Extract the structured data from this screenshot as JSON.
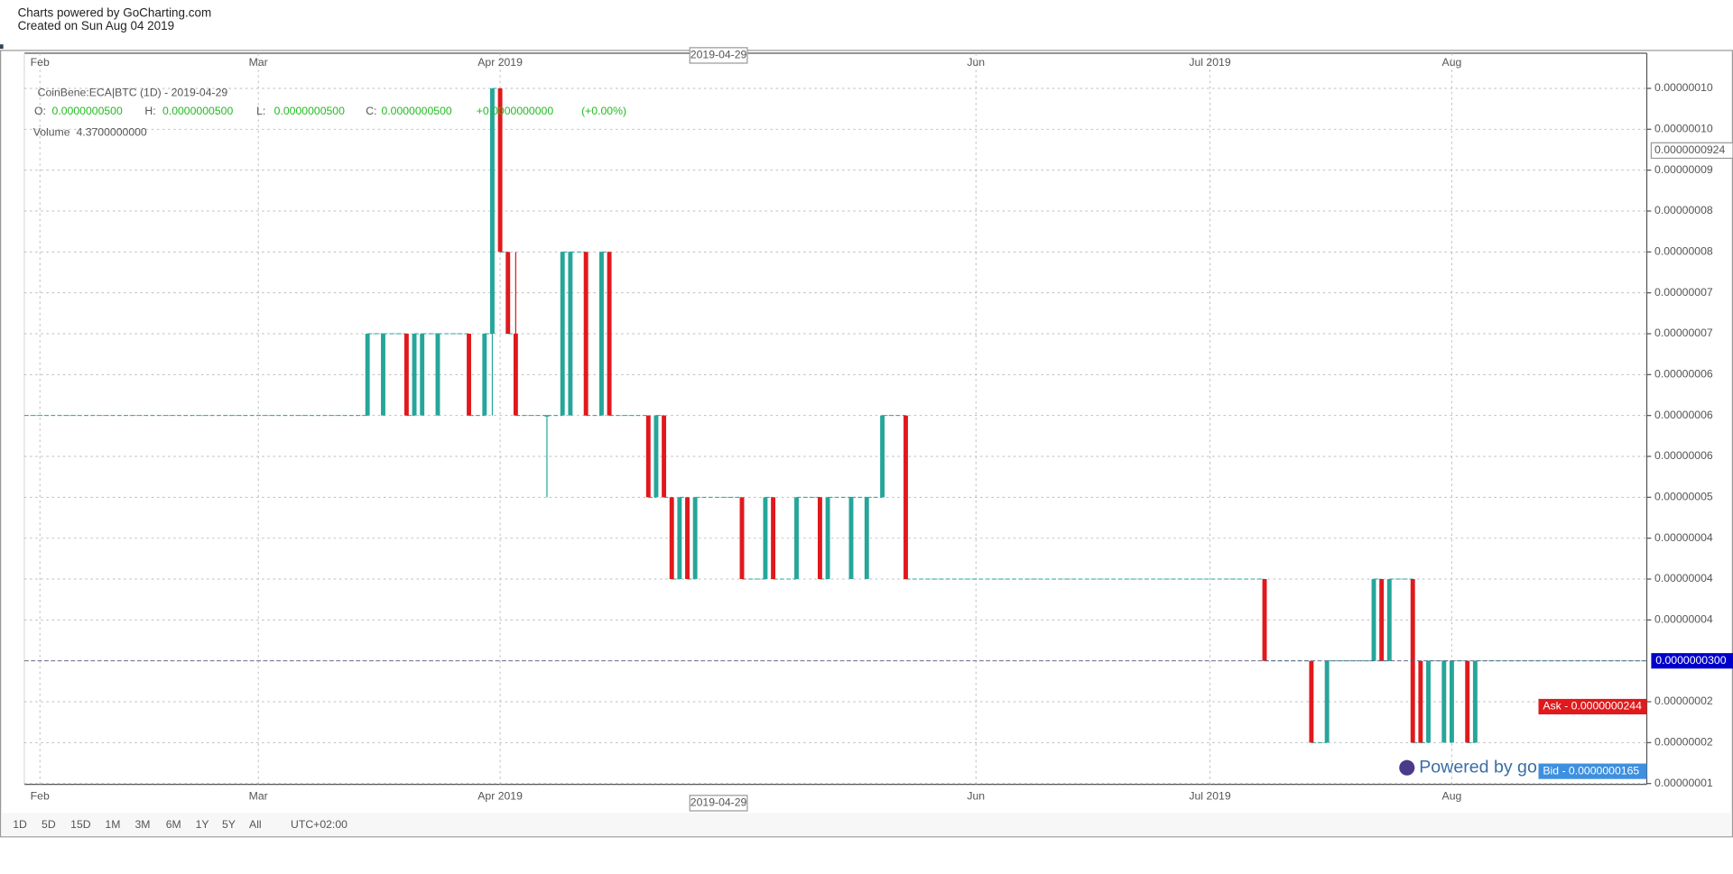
{
  "header": {
    "line1": "Charts powered by GoCharting.com",
    "line2": "Created on Sun Aug 04 2019"
  },
  "chart_data": {
    "type": "candlestick",
    "legend": {
      "symbol": "CoinBene:ECA|BTC (1D) - 2019-04-29",
      "o_label": "O:",
      "o_value": "0.0000000500",
      "h_label": "H:",
      "h_value": "0.0000000500",
      "l_label": "L:",
      "l_value": "0.0000000500",
      "c_label": "C:",
      "c_value": "0.0000000500",
      "change": "+0.0000000000",
      "change_pct": "(+0.00%)",
      "volume_label": "Volume",
      "volume_value": "4.3700000000"
    },
    "up_color": "#26a69a",
    "down_color": "#e0191c",
    "xlim": [
      "2019-01-30",
      "2019-08-26"
    ],
    "xticks": [
      {
        "value": "2019-02-01",
        "label": "Feb"
      },
      {
        "value": "2019-03-01",
        "label": "Mar"
      },
      {
        "value": "2019-04-01",
        "label": "Apr 2019"
      },
      {
        "value": "2019-06-01",
        "label": "Jun"
      },
      {
        "value": "2019-07-01",
        "label": "Jul 2019"
      },
      {
        "value": "2019-08-01",
        "label": "Aug"
      }
    ],
    "ylim": [
      1.49e-08,
      1.043e-07
    ],
    "yticks": [
      {
        "value": 1e-07,
        "label": "0.00000010"
      },
      {
        "value": 9.5e-08,
        "label": "0.00000010"
      },
      {
        "value": 9e-08,
        "label": "0.00000009"
      },
      {
        "value": 8.5e-08,
        "label": "0.00000008"
      },
      {
        "value": 8e-08,
        "label": "0.00000008"
      },
      {
        "value": 7.5e-08,
        "label": "0.00000007"
      },
      {
        "value": 7e-08,
        "label": "0.00000007"
      },
      {
        "value": 6.5e-08,
        "label": "0.00000006"
      },
      {
        "value": 6e-08,
        "label": "0.00000006"
      },
      {
        "value": 5.5e-08,
        "label": "0.00000006"
      },
      {
        "value": 5e-08,
        "label": "0.00000005"
      },
      {
        "value": 4.5e-08,
        "label": "0.00000004"
      },
      {
        "value": 4e-08,
        "label": "0.00000004"
      },
      {
        "value": 3.5e-08,
        "label": "0.00000004"
      },
      {
        "value": 2.5e-08,
        "label": "0.00000002"
      },
      {
        "value": 2e-08,
        "label": "0.00000002"
      },
      {
        "value": 1.5e-08,
        "label": "0.00000001"
      }
    ],
    "grid": true,
    "candles": [
      {
        "date": "2019-03-15",
        "open": 6e-08,
        "high": 7e-08,
        "low": 6e-08,
        "close": 7e-08
      },
      {
        "date": "2019-03-17",
        "open": 6e-08,
        "high": 7e-08,
        "low": 6e-08,
        "close": 7e-08
      },
      {
        "date": "2019-03-20",
        "open": 7e-08,
        "high": 7e-08,
        "low": 6e-08,
        "close": 6e-08
      },
      {
        "date": "2019-03-21",
        "open": 6e-08,
        "high": 7e-08,
        "low": 6e-08,
        "close": 7e-08
      },
      {
        "date": "2019-03-22",
        "open": 6e-08,
        "high": 7e-08,
        "low": 6e-08,
        "close": 7e-08
      },
      {
        "date": "2019-03-24",
        "open": 6e-08,
        "high": 7e-08,
        "low": 6e-08,
        "close": 7e-08
      },
      {
        "date": "2019-03-28",
        "open": 7e-08,
        "high": 7e-08,
        "low": 6e-08,
        "close": 6e-08
      },
      {
        "date": "2019-03-30",
        "open": 6e-08,
        "high": 7e-08,
        "low": 6e-08,
        "close": 7e-08
      },
      {
        "date": "2019-03-31",
        "open": 7e-08,
        "high": 1e-07,
        "low": 6e-08,
        "close": 1e-07
      },
      {
        "date": "2019-04-01",
        "open": 1e-07,
        "high": 1e-07,
        "low": 8e-08,
        "close": 8e-08
      },
      {
        "date": "2019-04-02",
        "open": 8e-08,
        "high": 8e-08,
        "low": 7e-08,
        "close": 7e-08
      },
      {
        "date": "2019-04-03",
        "open": 7e-08,
        "high": 8e-08,
        "low": 6e-08,
        "close": 6e-08
      },
      {
        "date": "2019-04-07",
        "open": 6e-08,
        "high": 6e-08,
        "low": 5e-08,
        "close": 6e-08
      },
      {
        "date": "2019-04-09",
        "open": 6e-08,
        "high": 8e-08,
        "low": 6e-08,
        "close": 8e-08
      },
      {
        "date": "2019-04-10",
        "open": 6e-08,
        "high": 8e-08,
        "low": 6e-08,
        "close": 8e-08
      },
      {
        "date": "2019-04-12",
        "open": 8e-08,
        "high": 8e-08,
        "low": 6e-08,
        "close": 6e-08
      },
      {
        "date": "2019-04-14",
        "open": 6e-08,
        "high": 8e-08,
        "low": 6e-08,
        "close": 8e-08
      },
      {
        "date": "2019-04-15",
        "open": 8e-08,
        "high": 8e-08,
        "low": 6e-08,
        "close": 6e-08
      },
      {
        "date": "2019-04-20",
        "open": 6e-08,
        "high": 6e-08,
        "low": 5e-08,
        "close": 5e-08
      },
      {
        "date": "2019-04-21",
        "open": 5e-08,
        "high": 6e-08,
        "low": 5e-08,
        "close": 6e-08
      },
      {
        "date": "2019-04-22",
        "open": 6e-08,
        "high": 6e-08,
        "low": 5e-08,
        "close": 5e-08
      },
      {
        "date": "2019-04-23",
        "open": 5e-08,
        "high": 5e-08,
        "low": 4e-08,
        "close": 4e-08
      },
      {
        "date": "2019-04-24",
        "open": 4e-08,
        "high": 5e-08,
        "low": 4e-08,
        "close": 5e-08
      },
      {
        "date": "2019-04-25",
        "open": 5e-08,
        "high": 5e-08,
        "low": 4e-08,
        "close": 4e-08
      },
      {
        "date": "2019-04-26",
        "open": 4e-08,
        "high": 5e-08,
        "low": 4e-08,
        "close": 5e-08
      },
      {
        "date": "2019-05-02",
        "open": 5e-08,
        "high": 5e-08,
        "low": 4e-08,
        "close": 4e-08
      },
      {
        "date": "2019-05-05",
        "open": 4e-08,
        "high": 5e-08,
        "low": 4e-08,
        "close": 5e-08
      },
      {
        "date": "2019-05-06",
        "open": 5e-08,
        "high": 5e-08,
        "low": 4e-08,
        "close": 4e-08
      },
      {
        "date": "2019-05-09",
        "open": 4e-08,
        "high": 5e-08,
        "low": 4e-08,
        "close": 5e-08
      },
      {
        "date": "2019-05-12",
        "open": 5e-08,
        "high": 5e-08,
        "low": 4e-08,
        "close": 4e-08
      },
      {
        "date": "2019-05-13",
        "open": 4e-08,
        "high": 5e-08,
        "low": 4e-08,
        "close": 5e-08
      },
      {
        "date": "2019-05-16",
        "open": 4e-08,
        "high": 5e-08,
        "low": 4e-08,
        "close": 5e-08
      },
      {
        "date": "2019-05-18",
        "open": 4e-08,
        "high": 5e-08,
        "low": 4e-08,
        "close": 5e-08
      },
      {
        "date": "2019-05-20",
        "open": 5e-08,
        "high": 6e-08,
        "low": 5e-08,
        "close": 6e-08
      },
      {
        "date": "2019-05-23",
        "open": 6e-08,
        "high": 6e-08,
        "low": 4e-08,
        "close": 4e-08
      },
      {
        "date": "2019-07-08",
        "open": 4e-08,
        "high": 4e-08,
        "low": 3e-08,
        "close": 3e-08
      },
      {
        "date": "2019-07-14",
        "open": 3e-08,
        "high": 3e-08,
        "low": 2e-08,
        "close": 2e-08
      },
      {
        "date": "2019-07-16",
        "open": 2e-08,
        "high": 3e-08,
        "low": 2e-08,
        "close": 3e-08
      },
      {
        "date": "2019-07-22",
        "open": 3e-08,
        "high": 4e-08,
        "low": 3e-08,
        "close": 4e-08
      },
      {
        "date": "2019-07-23",
        "open": 4e-08,
        "high": 4e-08,
        "low": 3e-08,
        "close": 3e-08
      },
      {
        "date": "2019-07-24",
        "open": 3e-08,
        "high": 4e-08,
        "low": 3e-08,
        "close": 4e-08
      },
      {
        "date": "2019-07-27",
        "open": 4e-08,
        "high": 4e-08,
        "low": 2e-08,
        "close": 2e-08
      },
      {
        "date": "2019-07-28",
        "open": 3e-08,
        "high": 3e-08,
        "low": 2e-08,
        "close": 2e-08
      },
      {
        "date": "2019-07-29",
        "open": 2e-08,
        "high": 3e-08,
        "low": 2e-08,
        "close": 3e-08
      },
      {
        "date": "2019-07-31",
        "open": 2e-08,
        "high": 3e-08,
        "low": 2e-08,
        "close": 3e-08
      },
      {
        "date": "2019-08-01",
        "open": 2e-08,
        "high": 3e-08,
        "low": 2e-08,
        "close": 3e-08
      },
      {
        "date": "2019-08-03",
        "open": 3e-08,
        "high": 3e-08,
        "low": 2e-08,
        "close": 2e-08
      },
      {
        "date": "2019-08-04",
        "open": 2e-08,
        "high": 3e-08,
        "low": 2e-08,
        "close": 3e-08
      }
    ],
    "price_lines": [
      {
        "label": "0.0000000300",
        "value": 3e-08,
        "color": "#0000cc"
      },
      {
        "label": "Ask - 0.0000000244",
        "value": 2.44e-08,
        "color": "#e0191c"
      },
      {
        "label": "Bid - 0.0000000165",
        "value": 1.65e-08,
        "color": "#3d8fe0"
      }
    ],
    "crosshair": {
      "date": "2019-04-29",
      "date_label": "2019-04-29",
      "price": 9.24e-08,
      "price_label": "0.0000000924"
    },
    "watermark": "Powered by go"
  },
  "toolbar": {
    "ranges": [
      "1D",
      "5D",
      "15D",
      "1M",
      "3M",
      "6M",
      "1Y",
      "5Y",
      "All"
    ],
    "timezone": "UTC+02:00"
  }
}
